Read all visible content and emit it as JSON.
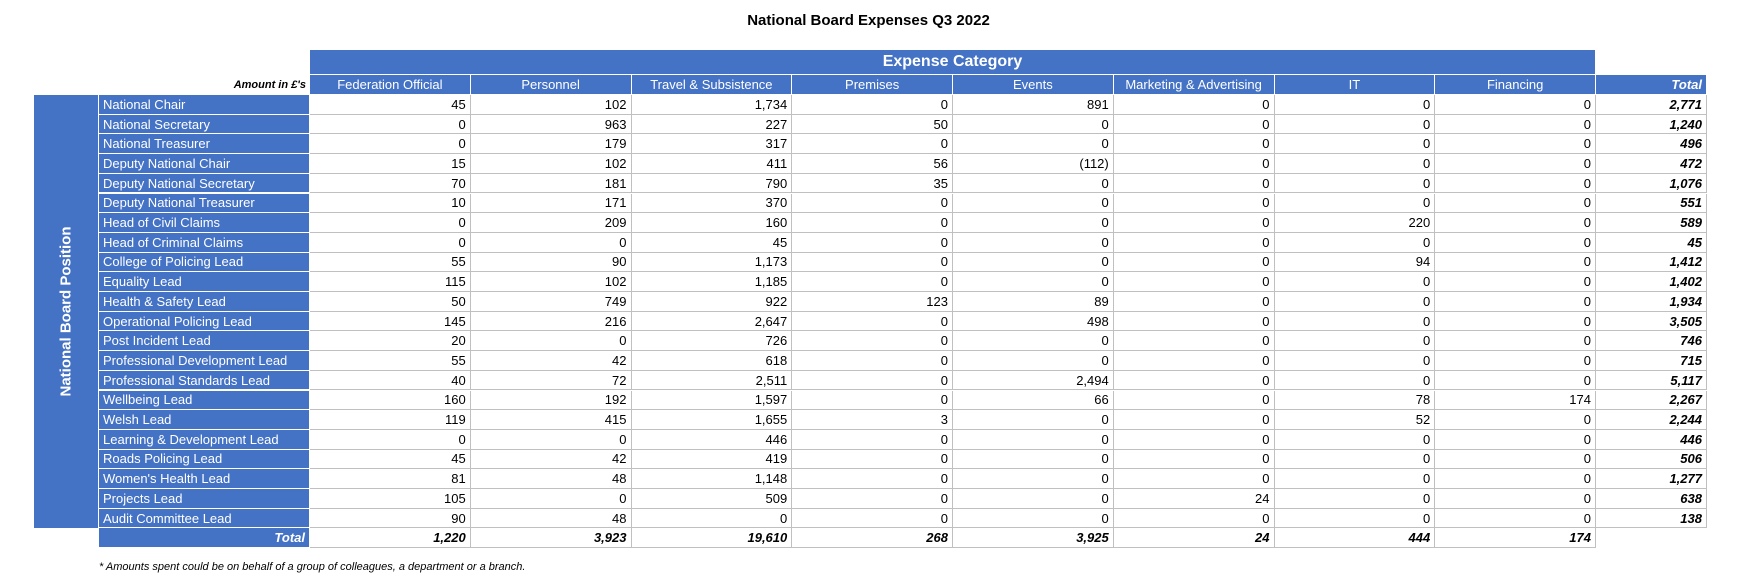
{
  "title": "National Board Expenses Q3 2022",
  "header": {
    "group_label": "Expense Category",
    "unit_note": "Amount in £'s",
    "columns": [
      "Federation Official",
      "Personnel",
      "Travel & Subsistence",
      "Premises",
      "Events",
      "Marketing & Advertising",
      "IT",
      "Financing"
    ],
    "total_label": "Total"
  },
  "row_group_label": "National Board Position",
  "rows": [
    {
      "position": "National Chair",
      "values": [
        "45",
        "102",
        "1,734",
        "0",
        "891",
        "0",
        "0",
        "0"
      ],
      "total": "2,771"
    },
    {
      "position": "National Secretary",
      "values": [
        "0",
        "963",
        "227",
        "50",
        "0",
        "0",
        "0",
        "0"
      ],
      "total": "1,240"
    },
    {
      "position": "National Treasurer",
      "values": [
        "0",
        "179",
        "317",
        "0",
        "0",
        "0",
        "0",
        "0"
      ],
      "total": "496"
    },
    {
      "position": "Deputy National Chair",
      "values": [
        "15",
        "102",
        "411",
        "56",
        "(112)",
        "0",
        "0",
        "0"
      ],
      "total": "472"
    },
    {
      "position": "Deputy National Secretary",
      "values": [
        "70",
        "181",
        "790",
        "35",
        "0",
        "0",
        "0",
        "0"
      ],
      "total": "1,076"
    },
    {
      "position": "Deputy National Treasurer",
      "values": [
        "10",
        "171",
        "370",
        "0",
        "0",
        "0",
        "0",
        "0"
      ],
      "total": "551"
    },
    {
      "position": "Head of Civil Claims",
      "values": [
        "0",
        "209",
        "160",
        "0",
        "0",
        "0",
        "220",
        "0"
      ],
      "total": "589"
    },
    {
      "position": "Head of Criminal Claims",
      "values": [
        "0",
        "0",
        "45",
        "0",
        "0",
        "0",
        "0",
        "0"
      ],
      "total": "45"
    },
    {
      "position": "College of Policing Lead",
      "values": [
        "55",
        "90",
        "1,173",
        "0",
        "0",
        "0",
        "94",
        "0"
      ],
      "total": "1,412"
    },
    {
      "position": "Equality Lead",
      "values": [
        "115",
        "102",
        "1,185",
        "0",
        "0",
        "0",
        "0",
        "0"
      ],
      "total": "1,402"
    },
    {
      "position": "Health & Safety Lead",
      "values": [
        "50",
        "749",
        "922",
        "123",
        "89",
        "0",
        "0",
        "0"
      ],
      "total": "1,934"
    },
    {
      "position": "Operational Policing Lead",
      "values": [
        "145",
        "216",
        "2,647",
        "0",
        "498",
        "0",
        "0",
        "0"
      ],
      "total": "3,505"
    },
    {
      "position": "Post Incident Lead",
      "values": [
        "20",
        "0",
        "726",
        "0",
        "0",
        "0",
        "0",
        "0"
      ],
      "total": "746"
    },
    {
      "position": "Professional Development Lead",
      "values": [
        "55",
        "42",
        "618",
        "0",
        "0",
        "0",
        "0",
        "0"
      ],
      "total": "715"
    },
    {
      "position": "Professional Standards Lead",
      "values": [
        "40",
        "72",
        "2,511",
        "0",
        "2,494",
        "0",
        "0",
        "0"
      ],
      "total": "5,117"
    },
    {
      "position": "Wellbeing Lead",
      "values": [
        "160",
        "192",
        "1,597",
        "0",
        "66",
        "0",
        "78",
        "174"
      ],
      "total": "2,267"
    },
    {
      "position": "Welsh Lead",
      "values": [
        "119",
        "415",
        "1,655",
        "3",
        "0",
        "0",
        "52",
        "0"
      ],
      "total": "2,244"
    },
    {
      "position": "Learning & Development Lead",
      "values": [
        "0",
        "0",
        "446",
        "0",
        "0",
        "0",
        "0",
        "0"
      ],
      "total": "446"
    },
    {
      "position": "Roads Policing Lead",
      "values": [
        "45",
        "42",
        "419",
        "0",
        "0",
        "0",
        "0",
        "0"
      ],
      "total": "506"
    },
    {
      "position": "Women's Health Lead",
      "values": [
        "81",
        "48",
        "1,148",
        "0",
        "0",
        "0",
        "0",
        "0"
      ],
      "total": "1,277"
    },
    {
      "position": "Projects Lead",
      "values": [
        "105",
        "0",
        "509",
        "0",
        "0",
        "24",
        "0",
        "0"
      ],
      "total": "638"
    },
    {
      "position": "Audit Committee Lead",
      "values": [
        "90",
        "48",
        "0",
        "0",
        "0",
        "0",
        "0",
        "0"
      ],
      "total": "138"
    }
  ],
  "totals": {
    "label": "Total",
    "values": [
      "1,220",
      "3,923",
      "19,610",
      "268",
      "3,925",
      "24",
      "444",
      "174"
    ]
  },
  "footnote": "* Amounts spent could be on behalf of a group of colleagues, a department or a branch."
}
